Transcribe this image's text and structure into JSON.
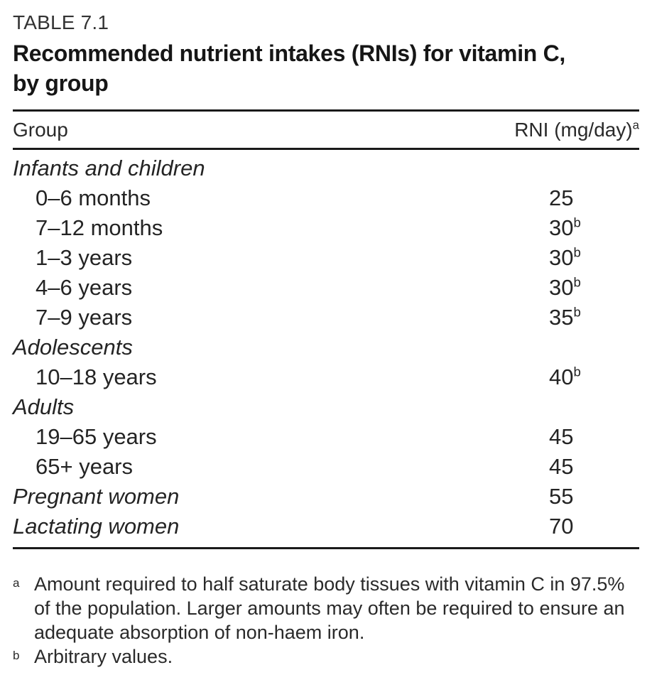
{
  "page": {
    "label": "TABLE 7.1",
    "title_line1": "Recommended nutrient intakes (RNIs) for vitamin C,",
    "title_line2": "by group"
  },
  "table": {
    "columns": {
      "group": "Group",
      "rni": "RNI (mg/day)",
      "rni_sup": "a"
    },
    "rows": [
      {
        "label": "Infants and children",
        "style": "section",
        "value": "",
        "sup": ""
      },
      {
        "label": "0–6 months",
        "style": "sub",
        "value": "25",
        "sup": ""
      },
      {
        "label": "7–12 months",
        "style": "sub",
        "value": "30",
        "sup": "b"
      },
      {
        "label": "1–3 years",
        "style": "sub",
        "value": "30",
        "sup": "b"
      },
      {
        "label": "4–6 years",
        "style": "sub",
        "value": "30",
        "sup": "b"
      },
      {
        "label": "7–9 years",
        "style": "sub",
        "value": "35",
        "sup": "b"
      },
      {
        "label": "Adolescents",
        "style": "section",
        "value": "",
        "sup": ""
      },
      {
        "label": "10–18 years",
        "style": "sub",
        "value": "40",
        "sup": "b"
      },
      {
        "label": "Adults",
        "style": "section",
        "value": "",
        "sup": ""
      },
      {
        "label": "19–65 years",
        "style": "sub",
        "value": "45",
        "sup": ""
      },
      {
        "label": "65+ years",
        "style": "sub",
        "value": "45",
        "sup": ""
      },
      {
        "label": "Pregnant women",
        "style": "section-value",
        "value": "55",
        "sup": ""
      },
      {
        "label": "Lactating women",
        "style": "section-value",
        "value": "70",
        "sup": ""
      }
    ]
  },
  "footnotes": [
    {
      "marker": "a",
      "text": "Amount required to half saturate body tissues with vitamin C in 97.5% of the population. Larger amounts may often be required to ensure an adequate absorption of non-haem iron."
    },
    {
      "marker": "b",
      "text": "Arbitrary values."
    }
  ],
  "colors": {
    "background": "#ffffff",
    "text": "#242424",
    "rule": "#1a1a1a"
  }
}
